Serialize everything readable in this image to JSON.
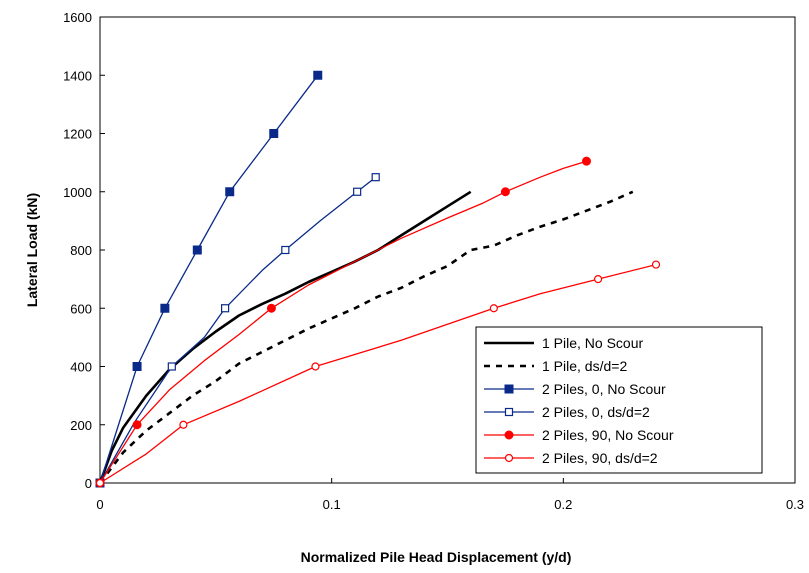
{
  "chart_data": {
    "type": "line",
    "title": "",
    "xlabel": "Normalized Pile Head Displacement (y/d)",
    "ylabel": "Lateral Load (kN)",
    "xlim": [
      0,
      0.3
    ],
    "ylim": [
      0,
      1600
    ],
    "xticks": [
      0,
      0.1,
      0.2,
      0.3
    ],
    "xtick_labels": [
      "0",
      "0.1",
      "0.2",
      "0.3"
    ],
    "yticks": [
      0,
      200,
      400,
      600,
      800,
      1000,
      1200,
      1400,
      1600
    ],
    "ytick_labels": [
      "0",
      "200",
      "400",
      "600",
      "800",
      "1000",
      "1200",
      "1400",
      "1600"
    ],
    "grid": false,
    "legend_position": "bottom-right",
    "series": [
      {
        "name": "1 Pile, No Scour",
        "color": "#000000",
        "line": "solid-thick",
        "marker": "none",
        "x": [
          0,
          0.005,
          0.01,
          0.02,
          0.03,
          0.04,
          0.05,
          0.06,
          0.07,
          0.08,
          0.09,
          0.1,
          0.11,
          0.12,
          0.13,
          0.14,
          0.15,
          0.16
        ],
        "y": [
          0,
          110,
          190,
          300,
          390,
          460,
          520,
          575,
          615,
          650,
          690,
          725,
          760,
          800,
          850,
          900,
          950,
          1000
        ]
      },
      {
        "name": "1 Pile, ds/d=2",
        "color": "#000000",
        "line": "dashed-thick",
        "marker": "none",
        "x": [
          0,
          0.01,
          0.02,
          0.03,
          0.04,
          0.05,
          0.06,
          0.07,
          0.08,
          0.09,
          0.1,
          0.11,
          0.12,
          0.13,
          0.14,
          0.15,
          0.16,
          0.17,
          0.18,
          0.19,
          0.2,
          0.21,
          0.22,
          0.23
        ],
        "y": [
          0,
          105,
          180,
          240,
          300,
          350,
          410,
          450,
          490,
          530,
          565,
          600,
          640,
          670,
          710,
          745,
          800,
          815,
          850,
          880,
          905,
          935,
          965,
          1000
        ]
      },
      {
        "name": "2 Piles, 0, No Scour",
        "color": "#0a2a8a",
        "line": "solid",
        "marker": "filled-square",
        "x": [
          0,
          0.016,
          0.028,
          0.042,
          0.056,
          0.075,
          0.094
        ],
        "y": [
          0,
          400,
          600,
          800,
          1000,
          1200,
          1400
        ],
        "marker_x": [
          0,
          0.016,
          0.028,
          0.042,
          0.056,
          0.075,
          0.094
        ],
        "marker_y": [
          0,
          400,
          600,
          800,
          1000,
          1200,
          1400
        ]
      },
      {
        "name": "2 Piles, 0, ds/d=2",
        "color": "#0a2a8a",
        "line": "solid",
        "marker": "open-square",
        "x": [
          0,
          0.015,
          0.031,
          0.045,
          0.054,
          0.07,
          0.08,
          0.095,
          0.111,
          0.119
        ],
        "y": [
          0,
          210,
          400,
          500,
          600,
          730,
          800,
          900,
          1000,
          1050
        ],
        "marker_x": [
          0,
          0.031,
          0.054,
          0.08,
          0.111,
          0.119
        ],
        "marker_y": [
          0,
          400,
          600,
          800,
          1000,
          1050
        ]
      },
      {
        "name": "2 Piles, 90, No Scour",
        "color": "#ff0000",
        "line": "solid",
        "marker": "filled-circle",
        "x": [
          0,
          0.016,
          0.03,
          0.045,
          0.06,
          0.074,
          0.09,
          0.11,
          0.13,
          0.15,
          0.165,
          0.175,
          0.19,
          0.2,
          0.21
        ],
        "y": [
          0,
          200,
          320,
          420,
          510,
          600,
          680,
          760,
          840,
          910,
          960,
          1000,
          1050,
          1080,
          1105
        ],
        "marker_x": [
          0,
          0.016,
          0.074,
          0.175,
          0.21
        ],
        "marker_y": [
          0,
          200,
          600,
          1000,
          1105
        ]
      },
      {
        "name": "2 Piles, 90, ds/d=2",
        "color": "#ff0000",
        "line": "solid",
        "marker": "open-circle",
        "x": [
          0,
          0.02,
          0.036,
          0.06,
          0.093,
          0.13,
          0.17,
          0.19,
          0.215,
          0.24
        ],
        "y": [
          0,
          100,
          200,
          280,
          400,
          490,
          600,
          650,
          700,
          750
        ],
        "marker_x": [
          0,
          0.036,
          0.093,
          0.17,
          0.215,
          0.24
        ],
        "marker_y": [
          0,
          200,
          400,
          600,
          700,
          750
        ]
      }
    ]
  }
}
